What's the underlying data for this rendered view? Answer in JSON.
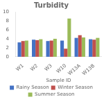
{
  "chart_data": {
    "type": "bar",
    "title": "Turbidity",
    "xlabel": "Sample ID",
    "categories": [
      "W1",
      "W2",
      "W3",
      "W10",
      "W13A",
      "W13B"
    ],
    "series": [
      {
        "name": "Rainy Season",
        "color": "#4472C4",
        "values": [
          3.2,
          3.8,
          3.5,
          3.6,
          4.2,
          3.9
        ]
      },
      {
        "name": "Winter Season",
        "color": "#C0504D",
        "values": [
          3.5,
          3.7,
          3.6,
          1.8,
          4.8,
          3.8
        ]
      },
      {
        "name": "Summer Season",
        "color": "#9BBB59",
        "values": [
          3.6,
          3.9,
          4.0,
          8.5,
          4.3,
          4.2
        ]
      }
    ],
    "ylim": [
      0,
      10
    ],
    "yticks": [
      0,
      2,
      4,
      6,
      8,
      10
    ],
    "grid": false,
    "legend": "bottom"
  }
}
